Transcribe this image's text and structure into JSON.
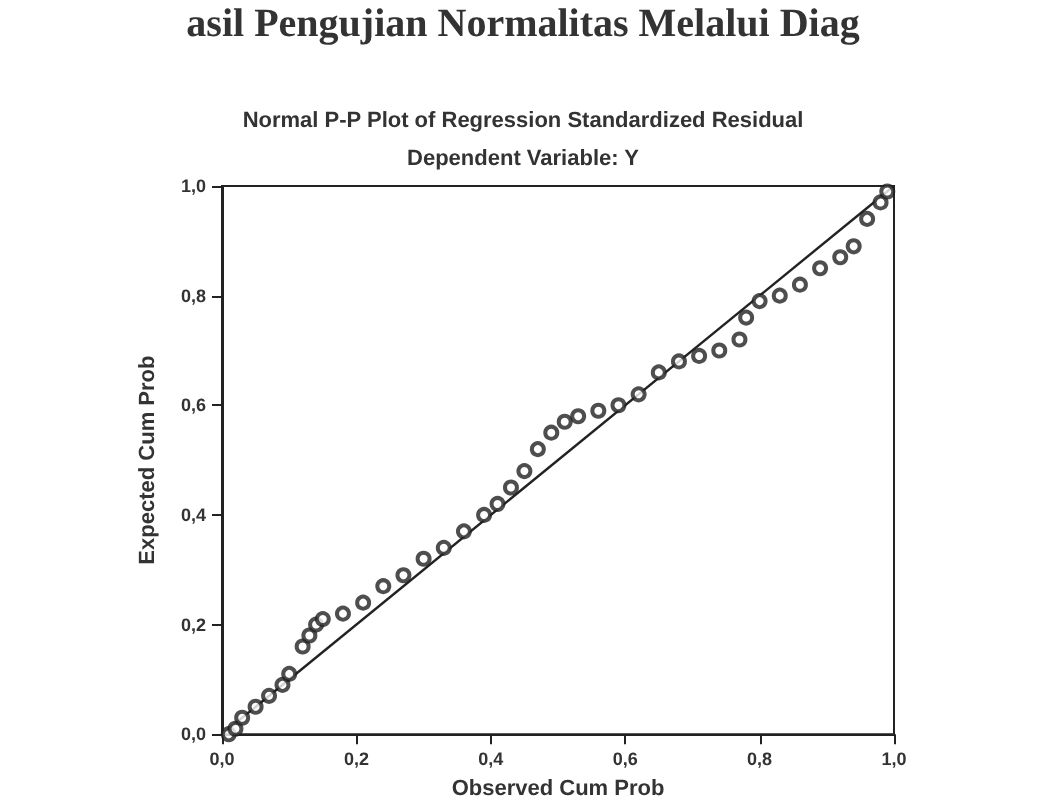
{
  "chart_data": {
    "type": "scatter",
    "title": "Normal P-P Plot of Regression Standardized Residual",
    "subtitle": "Dependent Variable: Y",
    "xlabel": "Observed Cum Prob",
    "ylabel": "Expected Cum Prob",
    "annotations": [
      "asil Pengujian Normalitas Melalui Diag"
    ],
    "xlim": [
      0,
      1
    ],
    "ylim": [
      0,
      1
    ],
    "xticks": [
      {
        "value": 0,
        "label": "0,0"
      },
      {
        "value": 0.2,
        "label": "0,2"
      },
      {
        "value": 0.4,
        "label": "0,4"
      },
      {
        "value": 0.6,
        "label": "0,6"
      },
      {
        "value": 0.8,
        "label": "0,8"
      },
      {
        "value": 1,
        "label": "1,0"
      }
    ],
    "yticks": [
      {
        "value": 0,
        "label": "0,0"
      },
      {
        "value": 0.2,
        "label": "0,2"
      },
      {
        "value": 0.4,
        "label": "0,4"
      },
      {
        "value": 0.6,
        "label": "0,6"
      },
      {
        "value": 0.8,
        "label": "0,8"
      },
      {
        "value": 1,
        "label": "1,0"
      }
    ],
    "grid": false,
    "marker": "circle",
    "series": [
      {
        "color": "#222222",
        "x": [
          0.01,
          0.02,
          0.03,
          0.05,
          0.07,
          0.09,
          0.1,
          0.12,
          0.13,
          0.14,
          0.15,
          0.18,
          0.21,
          0.24,
          0.27,
          0.3,
          0.33,
          0.36,
          0.39,
          0.41,
          0.43,
          0.45,
          0.47,
          0.49,
          0.51,
          0.53,
          0.56,
          0.59,
          0.62,
          0.65,
          0.68,
          0.71,
          0.74,
          0.77,
          0.78,
          0.8,
          0.83,
          0.86,
          0.89,
          0.92,
          0.94,
          0.96,
          0.98,
          0.99
        ],
        "values": [
          0.0,
          0.01,
          0.03,
          0.05,
          0.07,
          0.09,
          0.11,
          0.16,
          0.18,
          0.2,
          0.21,
          0.22,
          0.24,
          0.27,
          0.29,
          0.32,
          0.34,
          0.37,
          0.4,
          0.42,
          0.45,
          0.48,
          0.52,
          0.55,
          0.57,
          0.58,
          0.59,
          0.6,
          0.62,
          0.66,
          0.68,
          0.69,
          0.7,
          0.72,
          0.76,
          0.79,
          0.8,
          0.82,
          0.85,
          0.87,
          0.89,
          0.94,
          0.97,
          0.99
        ]
      },
      {
        "type": "line",
        "color": "#222222",
        "marker": "none",
        "line_style": "solid",
        "x": [
          0,
          1
        ],
        "values": [
          0,
          1
        ]
      }
    ]
  }
}
